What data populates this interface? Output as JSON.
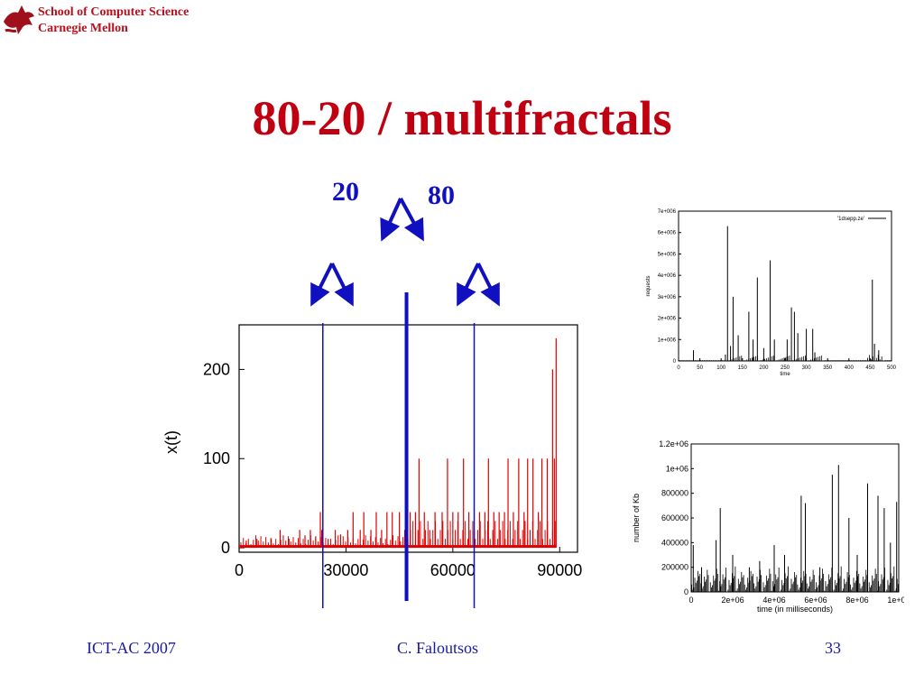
{
  "header": {
    "institution_line1": "School of Computer Science",
    "institution_line2": "Carnegie Mellon"
  },
  "slide": {
    "title": "80-20 / multifractals",
    "label_left": "20",
    "label_right": "80"
  },
  "footer": {
    "left": "ICT-AC 2007",
    "center": "C. Faloutsos",
    "right": "33"
  },
  "colors": {
    "title": "#c00010",
    "annotation": "#1010c0",
    "main_bars": "#e00000"
  },
  "chart_data": [
    {
      "type": "bar",
      "ylabel": "x(t)",
      "xlabel": "",
      "x_ticks": [
        "0",
        "30000",
        "60000",
        "90000"
      ],
      "x_tick_values": [
        0,
        30000,
        60000,
        90000
      ],
      "y_ticks": [
        "0",
        "100",
        "200"
      ],
      "y_tick_values": [
        0,
        100,
        200
      ],
      "xlim": [
        0,
        95000
      ],
      "ylim": [
        -5,
        250
      ],
      "grid": false,
      "divider_lines_x": [
        23500,
        47000,
        66000
      ],
      "spikes": [
        {
          "x": 2000,
          "y": 8
        },
        {
          "x": 5000,
          "y": 10
        },
        {
          "x": 9000,
          "y": 10
        },
        {
          "x": 11500,
          "y": 20
        },
        {
          "x": 14000,
          "y": 10
        },
        {
          "x": 17000,
          "y": 20
        },
        {
          "x": 18500,
          "y": 14
        },
        {
          "x": 20000,
          "y": 20
        },
        {
          "x": 21500,
          "y": 12
        },
        {
          "x": 22800,
          "y": 40
        },
        {
          "x": 23200,
          "y": 20
        },
        {
          "x": 25000,
          "y": 10
        },
        {
          "x": 27000,
          "y": 20
        },
        {
          "x": 28500,
          "y": 15
        },
        {
          "x": 30500,
          "y": 20
        },
        {
          "x": 32000,
          "y": 40
        },
        {
          "x": 34000,
          "y": 20
        },
        {
          "x": 35000,
          "y": 40
        },
        {
          "x": 37000,
          "y": 20
        },
        {
          "x": 38500,
          "y": 40
        },
        {
          "x": 40000,
          "y": 20
        },
        {
          "x": 41500,
          "y": 40
        },
        {
          "x": 43000,
          "y": 40
        },
        {
          "x": 45000,
          "y": 40
        },
        {
          "x": 46500,
          "y": 20
        },
        {
          "x": 48000,
          "y": 40
        },
        {
          "x": 49500,
          "y": 40
        },
        {
          "x": 50500,
          "y": 100
        },
        {
          "x": 52000,
          "y": 40
        },
        {
          "x": 53500,
          "y": 20
        },
        {
          "x": 55000,
          "y": 40
        },
        {
          "x": 57000,
          "y": 40
        },
        {
          "x": 58500,
          "y": 100
        },
        {
          "x": 60000,
          "y": 40
        },
        {
          "x": 61500,
          "y": 40
        },
        {
          "x": 63000,
          "y": 100
        },
        {
          "x": 64500,
          "y": 40
        },
        {
          "x": 66000,
          "y": 20
        },
        {
          "x": 67500,
          "y": 40
        },
        {
          "x": 69000,
          "y": 40
        },
        {
          "x": 70000,
          "y": 100
        },
        {
          "x": 71500,
          "y": 40
        },
        {
          "x": 73000,
          "y": 40
        },
        {
          "x": 74500,
          "y": 40
        },
        {
          "x": 75500,
          "y": 100
        },
        {
          "x": 77000,
          "y": 40
        },
        {
          "x": 78500,
          "y": 100
        },
        {
          "x": 80000,
          "y": 40
        },
        {
          "x": 81000,
          "y": 100
        },
        {
          "x": 82500,
          "y": 100
        },
        {
          "x": 84000,
          "y": 40
        },
        {
          "x": 85000,
          "y": 100
        },
        {
          "x": 86500,
          "y": 100
        },
        {
          "x": 88000,
          "y": 200
        },
        {
          "x": 88500,
          "y": 100
        },
        {
          "x": 89000,
          "y": 235
        }
      ]
    },
    {
      "type": "bar",
      "legend": "'1dsepp.ze'",
      "xlabel": "time",
      "ylabel": "requests",
      "x_ticks": [
        "0",
        "50",
        "100",
        "150",
        "200",
        "250",
        "300",
        "350",
        "400",
        "450",
        "500"
      ],
      "x_tick_values": [
        0,
        50,
        100,
        150,
        200,
        250,
        300,
        350,
        400,
        450,
        500
      ],
      "y_ticks": [
        "0",
        "1e+006",
        "2e+006",
        "3e+006",
        "4e+006",
        "5e+006",
        "6e+006",
        "7e+006"
      ],
      "y_tick_values": [
        0,
        1000000,
        2000000,
        3000000,
        4000000,
        5000000,
        6000000,
        7000000
      ],
      "xlim": [
        0,
        500
      ],
      "ylim": [
        0,
        7000000
      ],
      "spikes": [
        {
          "x": 35,
          "y": 500000
        },
        {
          "x": 110,
          "y": 300000
        },
        {
          "x": 115,
          "y": 6300000
        },
        {
          "x": 122,
          "y": 700000
        },
        {
          "x": 128,
          "y": 3000000
        },
        {
          "x": 140,
          "y": 1200000
        },
        {
          "x": 165,
          "y": 2300000
        },
        {
          "x": 175,
          "y": 1000000
        },
        {
          "x": 185,
          "y": 3900000
        },
        {
          "x": 200,
          "y": 600000
        },
        {
          "x": 215,
          "y": 4700000
        },
        {
          "x": 225,
          "y": 1000000
        },
        {
          "x": 255,
          "y": 1000000
        },
        {
          "x": 265,
          "y": 2500000
        },
        {
          "x": 272,
          "y": 2300000
        },
        {
          "x": 280,
          "y": 1300000
        },
        {
          "x": 300,
          "y": 1500000
        },
        {
          "x": 315,
          "y": 1500000
        },
        {
          "x": 320,
          "y": 400000
        },
        {
          "x": 455,
          "y": 3800000
        },
        {
          "x": 460,
          "y": 800000
        },
        {
          "x": 470,
          "y": 500000
        }
      ]
    },
    {
      "type": "line",
      "xlabel": "time (in milliseconds)",
      "ylabel": "number of Kb",
      "x_ticks": [
        "0",
        "2e+06",
        "4e+06",
        "6e+06",
        "8e+06",
        "1e+07"
      ],
      "x_tick_values": [
        0,
        2000000,
        4000000,
        6000000,
        8000000,
        10000000
      ],
      "y_ticks": [
        "0",
        "200000",
        "400000",
        "600000",
        "800000",
        "1e+06",
        "1.2e+06"
      ],
      "y_tick_values": [
        0,
        200000,
        400000,
        600000,
        800000,
        1000000,
        1200000
      ],
      "xlim": [
        0,
        10000000
      ],
      "ylim": [
        0,
        1200000
      ],
      "spikes": [
        {
          "x": 100000,
          "y": 380000
        },
        {
          "x": 500000,
          "y": 200000
        },
        {
          "x": 1200000,
          "y": 420000
        },
        {
          "x": 1400000,
          "y": 680000
        },
        {
          "x": 2000000,
          "y": 300000
        },
        {
          "x": 2800000,
          "y": 200000
        },
        {
          "x": 3300000,
          "y": 250000
        },
        {
          "x": 4000000,
          "y": 380000
        },
        {
          "x": 4500000,
          "y": 300000
        },
        {
          "x": 5300000,
          "y": 780000
        },
        {
          "x": 5500000,
          "y": 720000
        },
        {
          "x": 6200000,
          "y": 200000
        },
        {
          "x": 6800000,
          "y": 950000
        },
        {
          "x": 7100000,
          "y": 1030000
        },
        {
          "x": 7600000,
          "y": 600000
        },
        {
          "x": 8000000,
          "y": 300000
        },
        {
          "x": 8500000,
          "y": 880000
        },
        {
          "x": 9000000,
          "y": 780000
        },
        {
          "x": 9300000,
          "y": 680000
        },
        {
          "x": 9600000,
          "y": 400000
        },
        {
          "x": 9900000,
          "y": 730000
        }
      ]
    }
  ]
}
